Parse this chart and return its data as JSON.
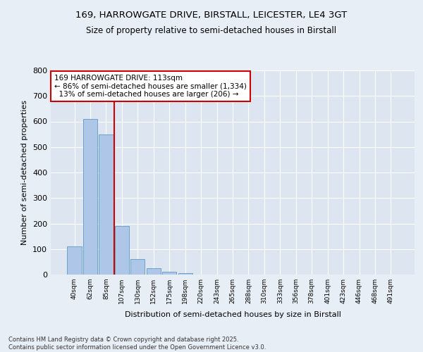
{
  "title_line1": "169, HARROWGATE DRIVE, BIRSTALL, LEICESTER, LE4 3GT",
  "title_line2": "Size of property relative to semi-detached houses in Birstall",
  "xlabel": "Distribution of semi-detached houses by size in Birstall",
  "ylabel": "Number of semi-detached properties",
  "bar_labels": [
    "40sqm",
    "62sqm",
    "85sqm",
    "107sqm",
    "130sqm",
    "152sqm",
    "175sqm",
    "198sqm",
    "220sqm",
    "243sqm",
    "265sqm",
    "288sqm",
    "310sqm",
    "333sqm",
    "356sqm",
    "378sqm",
    "401sqm",
    "423sqm",
    "446sqm",
    "468sqm",
    "491sqm"
  ],
  "bar_values": [
    110,
    610,
    548,
    190,
    62,
    25,
    12,
    6,
    0,
    0,
    0,
    0,
    0,
    0,
    0,
    0,
    0,
    0,
    0,
    0,
    0
  ],
  "bar_color": "#aec6e8",
  "bar_edge_color": "#5a9ac5",
  "vline_x": 3.0,
  "vline_color": "#cc0000",
  "annotation_text": "169 HARROWGATE DRIVE: 113sqm\n← 86% of semi-detached houses are smaller (1,334)\n  13% of semi-detached houses are larger (206) →",
  "annotation_box_color": "#ffffff",
  "annotation_box_edge": "#cc0000",
  "ylim": [
    0,
    800
  ],
  "yticks": [
    0,
    100,
    200,
    300,
    400,
    500,
    600,
    700,
    800
  ],
  "background_color": "#dde6f0",
  "plot_bg_color": "#dde6f0",
  "fig_bg_color": "#e8eef6",
  "grid_color": "#ffffff",
  "footer_line1": "Contains HM Land Registry data © Crown copyright and database right 2025.",
  "footer_line2": "Contains public sector information licensed under the Open Government Licence v3.0."
}
